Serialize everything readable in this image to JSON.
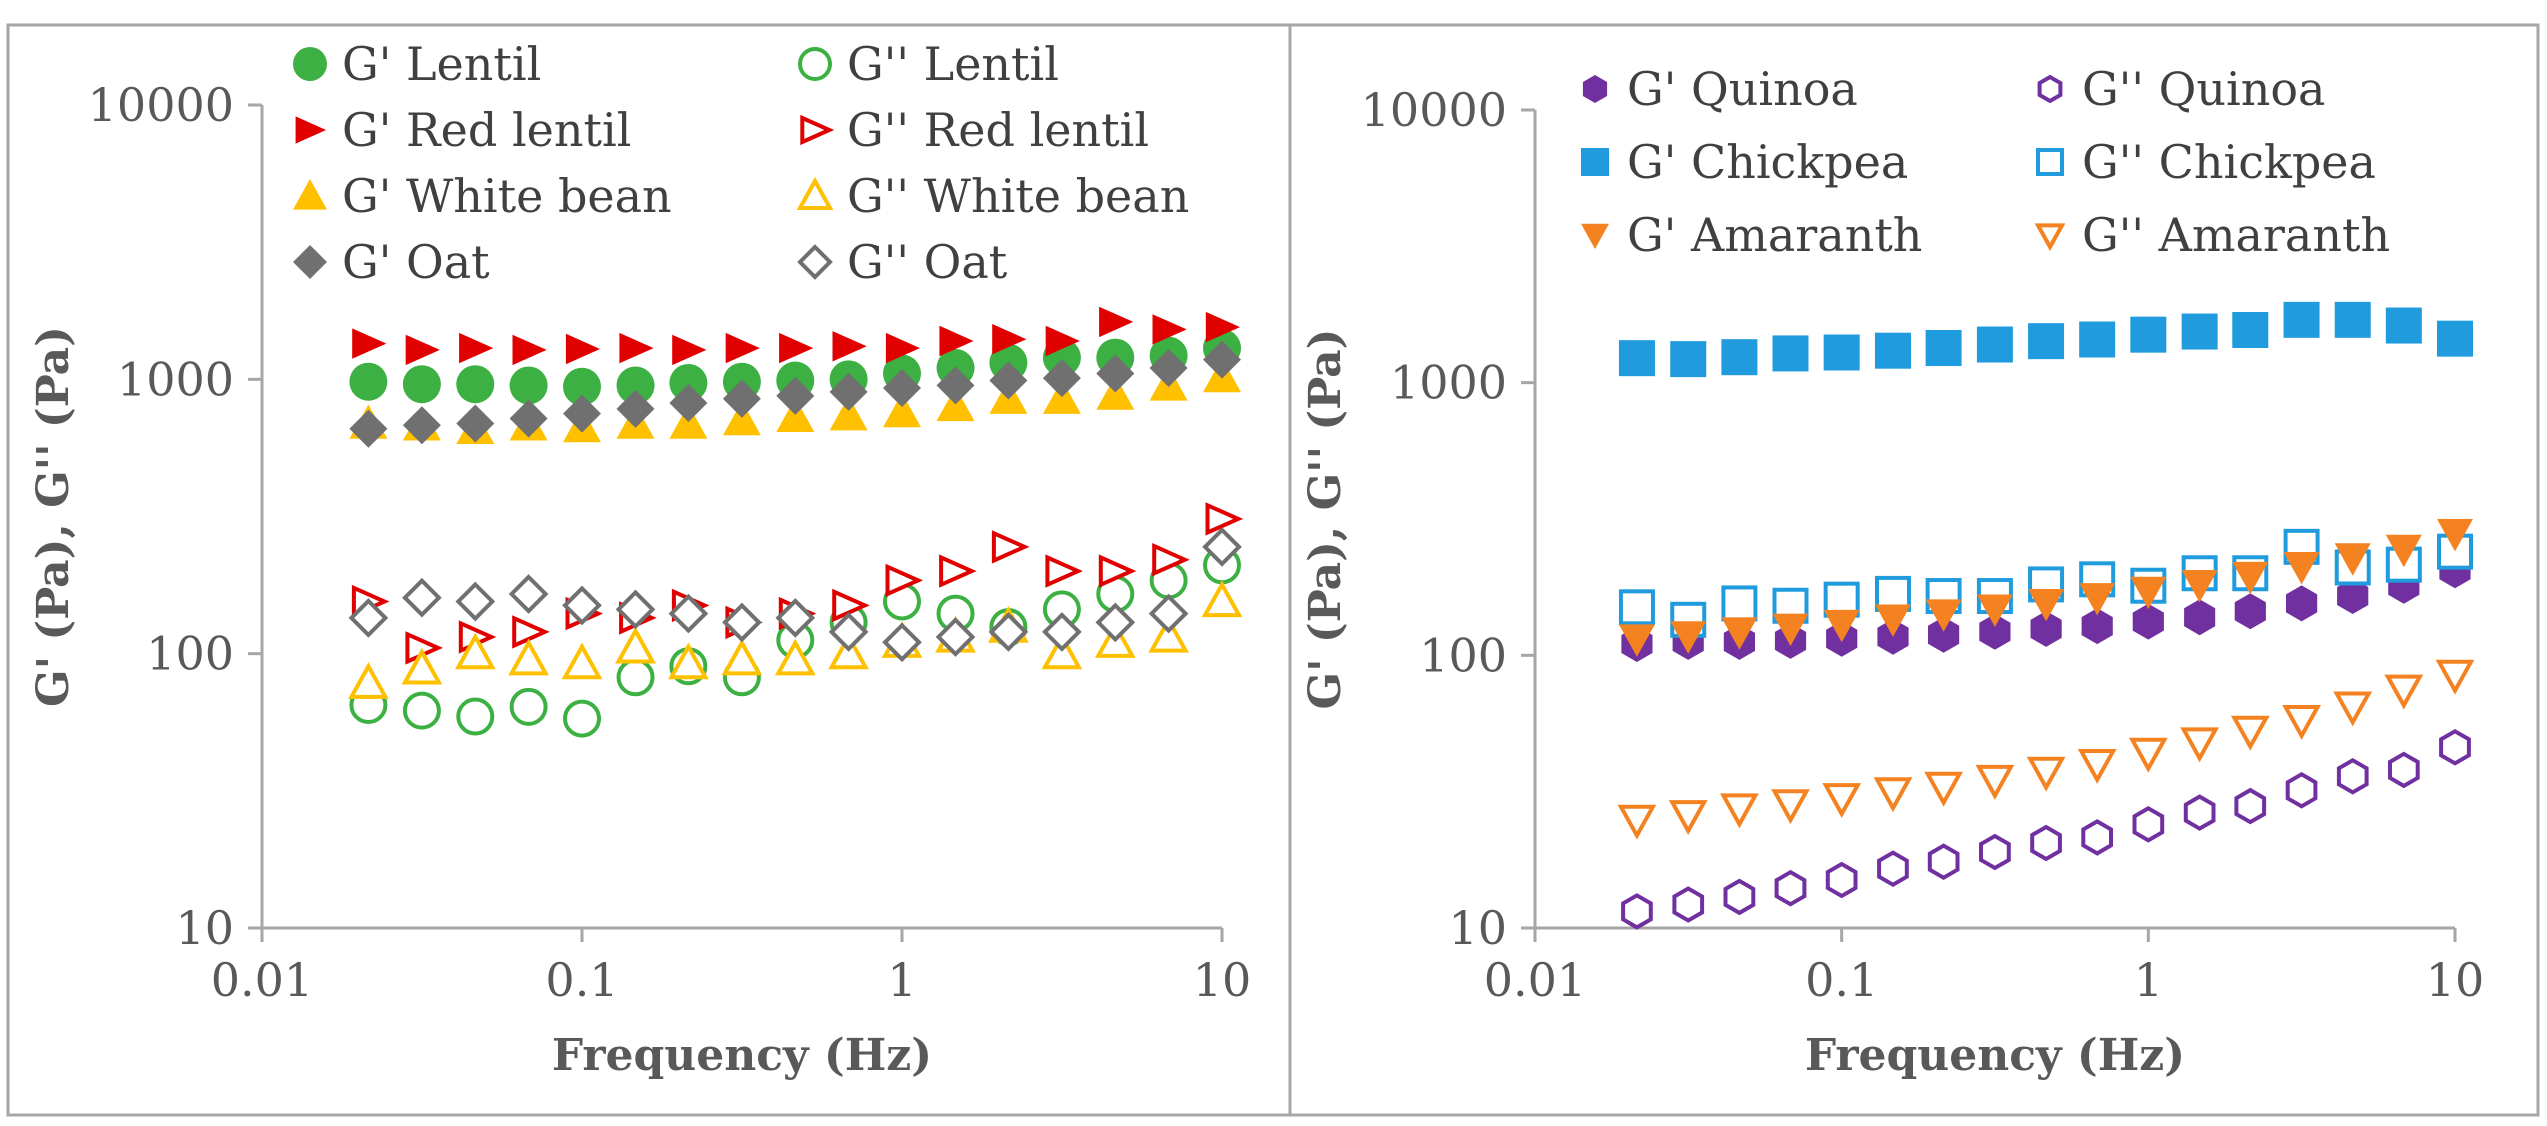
{
  "chart_data": [
    {
      "type": "scatter",
      "xlabel": "Frequency (Hz)",
      "ylabel": "G' (Pa), G'' (Pa)",
      "xscale": "log",
      "yscale": "log",
      "xlim": [
        0.01,
        10
      ],
      "ylim": [
        10,
        10000
      ],
      "xticks": [
        {
          "value": 0.01,
          "label": "0.01"
        },
        {
          "value": 0.1,
          "label": "0.1"
        },
        {
          "value": 1,
          "label": "1"
        },
        {
          "value": 10,
          "label": "10"
        }
      ],
      "yticks": [
        {
          "value": 10,
          "label": "10"
        },
        {
          "value": 100,
          "label": "100"
        },
        {
          "value": 1000,
          "label": "1000"
        },
        {
          "value": 10000,
          "label": "10000"
        }
      ],
      "legend_position": "top",
      "x": [
        0.0215,
        0.0316,
        0.0464,
        0.0681,
        0.1,
        0.147,
        0.215,
        0.316,
        0.464,
        0.681,
        1,
        1.47,
        2.15,
        3.16,
        4.64,
        6.81,
        10
      ],
      "series": [
        {
          "name": "G' Lentil",
          "marker": "circle",
          "filled": true,
          "color": "#3CB043",
          "values": [
            980,
            960,
            960,
            950,
            940,
            950,
            970,
            980,
            990,
            1000,
            1050,
            1100,
            1150,
            1200,
            1200,
            1220,
            1300
          ]
        },
        {
          "name": "G'' Lentil",
          "marker": "circle",
          "filled": false,
          "color": "#3CB043",
          "values": [
            65,
            62,
            59,
            64,
            58,
            82,
            90,
            82,
            112,
            130,
            155,
            140,
            125,
            145,
            165,
            185,
            210
          ]
        },
        {
          "name": "G' Red lentil",
          "marker": "triangle-right",
          "filled": true,
          "color": "#E00000",
          "values": [
            1350,
            1280,
            1300,
            1280,
            1290,
            1300,
            1280,
            1300,
            1300,
            1320,
            1300,
            1380,
            1400,
            1380,
            1620,
            1520,
            1550
          ]
        },
        {
          "name": "G'' Red lentil",
          "marker": "triangle-right",
          "filled": false,
          "color": "#E00000",
          "values": [
            155,
            105,
            115,
            120,
            140,
            135,
            150,
            130,
            140,
            150,
            185,
            200,
            245,
            200,
            200,
            220,
            310
          ]
        },
        {
          "name": "G' White bean",
          "marker": "triangle-up",
          "filled": true,
          "color": "#FFC000",
          "values": [
            690,
            680,
            660,
            680,
            670,
            690,
            690,
            710,
            730,
            740,
            760,
            800,
            850,
            850,
            880,
            950,
            1020
          ]
        },
        {
          "name": "G'' White bean",
          "marker": "triangle-up",
          "filled": false,
          "color": "#FFC000",
          "values": [
            78,
            88,
            100,
            95,
            92,
            105,
            92,
            95,
            95,
            100,
            110,
            115,
            125,
            100,
            110,
            115,
            155
          ]
        },
        {
          "name": "G' Oat",
          "marker": "diamond",
          "filled": true,
          "color": "#707070",
          "values": [
            660,
            680,
            690,
            720,
            750,
            780,
            820,
            850,
            870,
            900,
            930,
            950,
            990,
            1010,
            1050,
            1100,
            1180
          ]
        },
        {
          "name": "G'' Oat",
          "marker": "diamond",
          "filled": false,
          "color": "#707070",
          "values": [
            135,
            160,
            155,
            165,
            150,
            145,
            140,
            130,
            135,
            120,
            110,
            115,
            120,
            120,
            130,
            140,
            245
          ]
        }
      ]
    },
    {
      "type": "scatter",
      "xlabel": "Frequency (Hz)",
      "ylabel": "G' (Pa), G'' (Pa)",
      "xscale": "log",
      "yscale": "log",
      "xlim": [
        0.01,
        10
      ],
      "ylim": [
        10,
        10000
      ],
      "xticks": [
        {
          "value": 0.01,
          "label": "0.01"
        },
        {
          "value": 0.1,
          "label": "0.1"
        },
        {
          "value": 1,
          "label": "1"
        },
        {
          "value": 10,
          "label": "10"
        }
      ],
      "yticks": [
        {
          "value": 10,
          "label": "10"
        },
        {
          "value": 100,
          "label": "100"
        },
        {
          "value": 1000,
          "label": "1000"
        },
        {
          "value": 10000,
          "label": "10000"
        }
      ],
      "legend_position": "top",
      "x": [
        0.0215,
        0.0316,
        0.0464,
        0.0681,
        0.1,
        0.147,
        0.215,
        0.316,
        0.464,
        0.681,
        1,
        1.47,
        2.15,
        3.16,
        4.64,
        6.81,
        10
      ],
      "series": [
        {
          "name": "G' Quinoa",
          "marker": "hexagon",
          "filled": true,
          "color": "#7030A0",
          "values": [
            110,
            112,
            112,
            113,
            115,
            117,
            119,
            122,
            125,
            128,
            133,
            138,
            145,
            155,
            165,
            180,
            205
          ]
        },
        {
          "name": "G'' Quinoa",
          "marker": "hexagon",
          "filled": false,
          "color": "#7030A0",
          "values": [
            11.5,
            12.2,
            13,
            14,
            15,
            16.5,
            17.5,
            19,
            20.5,
            21.5,
            24,
            26.5,
            28,
            32,
            36,
            38,
            46
          ]
        },
        {
          "name": "G' Chickpea",
          "marker": "square",
          "filled": true,
          "color": "#1F9BDE",
          "values": [
            1230,
            1220,
            1240,
            1280,
            1290,
            1310,
            1340,
            1380,
            1420,
            1440,
            1500,
            1540,
            1560,
            1700,
            1700,
            1620,
            1450
          ]
        },
        {
          "name": "G'' Chickpea",
          "marker": "square",
          "filled": false,
          "color": "#1F9BDE",
          "values": [
            150,
            135,
            155,
            152,
            160,
            168,
            165,
            165,
            182,
            190,
            180,
            200,
            200,
            250,
            210,
            215,
            240
          ]
        },
        {
          "name": "G' Amaranth",
          "marker": "triangle-down",
          "filled": true,
          "color": "#F58220",
          "values": [
            115,
            118,
            122,
            126,
            130,
            136,
            142,
            148,
            155,
            163,
            172,
            182,
            195,
            212,
            228,
            245,
            280
          ]
        },
        {
          "name": "G'' Amaranth",
          "marker": "triangle-down",
          "filled": false,
          "color": "#F58220",
          "values": [
            25,
            26,
            27.5,
            28.5,
            30,
            31.5,
            33,
            35,
            37.5,
            40,
            44,
            48,
            53,
            58,
            65,
            75,
            85
          ]
        }
      ]
    }
  ]
}
